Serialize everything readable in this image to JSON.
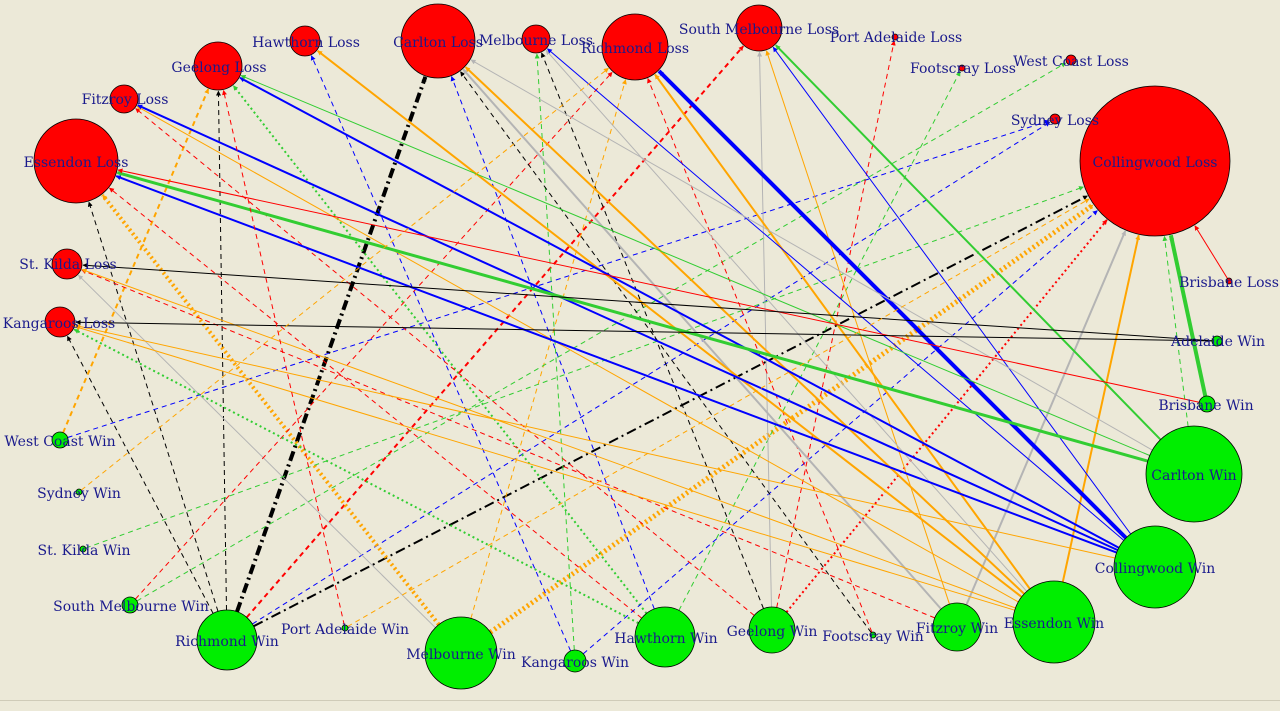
{
  "colors": {
    "background": "#ece9d8",
    "loss_node": "#ff0000",
    "win_node": "#00ee00",
    "label": "#1a1a8c",
    "edge_colors": [
      "#0000ff",
      "#32cd32",
      "#ffa500",
      "#ff0000",
      "#000000",
      "#b4b4b4"
    ]
  },
  "nodes": [
    {
      "id": "carlton_loss",
      "label": "Carlton Loss",
      "type": "loss"
    },
    {
      "id": "hawthorn_loss",
      "label": "Hawthorn Loss",
      "type": "loss"
    },
    {
      "id": "melbourne_loss",
      "label": "Melbourne Loss",
      "type": "loss"
    },
    {
      "id": "richmond_loss",
      "label": "Richmond Loss",
      "type": "loss"
    },
    {
      "id": "southmelb_loss",
      "label": "South Melbourne Loss",
      "type": "loss"
    },
    {
      "id": "portadel_loss",
      "label": "Port Adelaide Loss",
      "type": "loss"
    },
    {
      "id": "geelong_loss",
      "label": "Geelong Loss",
      "type": "loss"
    },
    {
      "id": "footscray_loss",
      "label": "Footscray Loss",
      "type": "loss"
    },
    {
      "id": "westcoast_loss",
      "label": "West Coast Loss",
      "type": "loss"
    },
    {
      "id": "fitzroy_loss",
      "label": "Fitzroy Loss",
      "type": "loss"
    },
    {
      "id": "sydney_loss",
      "label": "Sydney Loss",
      "type": "loss"
    },
    {
      "id": "collingwood_loss",
      "label": "Collingwood Loss",
      "type": "loss"
    },
    {
      "id": "essendon_loss",
      "label": "Essendon Loss",
      "type": "loss"
    },
    {
      "id": "stkilda_loss",
      "label": "St. Kilda Loss",
      "type": "loss"
    },
    {
      "id": "brisbane_loss",
      "label": "Brisbane Loss",
      "type": "loss"
    },
    {
      "id": "kangaroos_loss",
      "label": "Kangaroos Loss",
      "type": "loss"
    },
    {
      "id": "adelaide_win",
      "label": "Adelaide Win",
      "type": "win"
    },
    {
      "id": "brisbane_win",
      "label": "Brisbane Win",
      "type": "win"
    },
    {
      "id": "westcoast_win",
      "label": "West Coast Win",
      "type": "win"
    },
    {
      "id": "carlton_win",
      "label": "Carlton Win",
      "type": "win"
    },
    {
      "id": "sydney_win",
      "label": "Sydney Win",
      "type": "win"
    },
    {
      "id": "stkilda_win",
      "label": "St. Kilda Win",
      "type": "win"
    },
    {
      "id": "collingwood_win",
      "label": "Collingwood Win",
      "type": "win"
    },
    {
      "id": "southmelb_win",
      "label": "South Melbourne Win",
      "type": "win"
    },
    {
      "id": "essendon_win",
      "label": "Essendon Win",
      "type": "win"
    },
    {
      "id": "richmond_win",
      "label": "Richmond Win",
      "type": "win"
    },
    {
      "id": "portadel_win",
      "label": "Port Adelaide Win",
      "type": "win"
    },
    {
      "id": "melbourne_win",
      "label": "Melbourne Win",
      "type": "win"
    },
    {
      "id": "hawthorn_win",
      "label": "Hawthorn Win",
      "type": "win"
    },
    {
      "id": "geelong_win",
      "label": "Geelong Win",
      "type": "win"
    },
    {
      "id": "footscray_win",
      "label": "Footscray Win",
      "type": "win"
    },
    {
      "id": "fitzroy_win",
      "label": "Fitzroy Win",
      "type": "win"
    },
    {
      "id": "kangaroos_win",
      "label": "Kangaroos Win",
      "type": "win"
    }
  ]
}
